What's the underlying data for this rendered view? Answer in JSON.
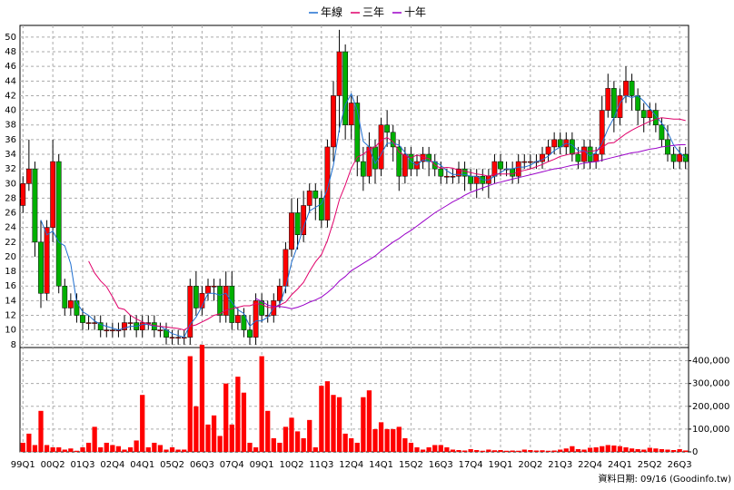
{
  "chart_data": [
    {
      "type": "candlestick",
      "source": "資料日期: 09/16 (Goodinfo.tw)",
      "categories": [
        "99Q1",
        null,
        null,
        null,
        null,
        "00Q2",
        null,
        null,
        null,
        null,
        "01Q3",
        null,
        null,
        null,
        null,
        "02Q4",
        null,
        null,
        null,
        null,
        "04Q1",
        null,
        null,
        null,
        null,
        "05Q2",
        null,
        null,
        null,
        null,
        "06Q3",
        null,
        null,
        null,
        null,
        "07Q4",
        null,
        null,
        null,
        null,
        "09Q1",
        null,
        null,
        null,
        null,
        "10Q2",
        null,
        null,
        null,
        null,
        "11Q3",
        null,
        null,
        null,
        null,
        "12Q4",
        null,
        null,
        null,
        null,
        "14Q1",
        null,
        null,
        null,
        null,
        "15Q2",
        null,
        null,
        null,
        null,
        "16Q3",
        null,
        null,
        null,
        null,
        "17Q4",
        null,
        null,
        null,
        null,
        "19Q1",
        null,
        null,
        null,
        null,
        "20Q2",
        null,
        null,
        null,
        null,
        "21Q3",
        null,
        null,
        null,
        null,
        "22Q4",
        null,
        null,
        null,
        null,
        "24Q1",
        null,
        null,
        null,
        null,
        "25Q2",
        null,
        null,
        null,
        null,
        "26Q3",
        null
      ],
      "open": [
        27,
        30,
        32,
        22,
        15,
        24,
        33,
        16,
        13,
        14,
        12,
        11,
        11,
        11,
        10,
        10,
        10,
        10,
        11,
        11,
        10,
        11,
        11,
        10,
        10,
        9,
        9,
        9,
        9,
        16,
        13,
        15,
        16,
        16,
        12,
        16,
        11,
        12,
        10,
        9,
        14,
        12,
        12,
        14,
        16,
        21,
        26,
        23,
        27,
        29,
        28,
        25,
        35,
        42,
        48,
        38,
        41,
        33,
        31,
        35,
        32,
        38,
        37,
        35,
        31,
        34,
        32,
        33,
        34,
        33,
        32,
        31,
        31,
        31,
        32,
        31,
        30,
        31,
        30,
        31,
        33,
        32,
        32,
        31,
        33,
        33,
        33,
        33,
        34,
        35,
        36,
        35,
        36,
        34,
        33,
        35,
        33,
        34,
        40,
        43,
        39,
        42,
        44,
        42,
        40,
        39,
        40,
        38,
        36,
        34,
        33,
        34
      ],
      "high": [
        31,
        36,
        33,
        25,
        25,
        36,
        34,
        17,
        15,
        15,
        13,
        12,
        12,
        12,
        11,
        11,
        11,
        12,
        12,
        12,
        12,
        12,
        12,
        11,
        11,
        10,
        10,
        10,
        17,
        18,
        16,
        17,
        17,
        17,
        18,
        18,
        13,
        13,
        12,
        15,
        15,
        14,
        15,
        17,
        22,
        28,
        28,
        29,
        30,
        30,
        29,
        36,
        44,
        51,
        49,
        42,
        42,
        35,
        37,
        36,
        39,
        40,
        38,
        36,
        35,
        35,
        34,
        35,
        35,
        34,
        33,
        32,
        32,
        33,
        33,
        32,
        32,
        32,
        32,
        34,
        34,
        33,
        33,
        34,
        34,
        34,
        34,
        35,
        36,
        37,
        37,
        37,
        37,
        35,
        36,
        36,
        35,
        42,
        45,
        44,
        43,
        46,
        45,
        43,
        41,
        41,
        41,
        39,
        38,
        35,
        35,
        35
      ],
      "low": [
        26,
        29,
        20,
        13,
        14,
        22,
        15,
        12,
        12,
        11,
        10,
        10,
        10,
        9,
        9,
        9,
        9,
        9,
        10,
        9,
        9,
        10,
        9,
        9,
        8,
        8,
        8,
        8,
        8,
        12,
        12,
        14,
        14,
        11,
        11,
        10,
        10,
        9,
        8,
        8,
        11,
        11,
        11,
        13,
        15,
        20,
        21,
        22,
        26,
        25,
        24,
        24,
        33,
        37,
        36,
        36,
        31,
        29,
        30,
        30,
        31,
        35,
        33,
        29,
        30,
        31,
        31,
        32,
        31,
        31,
        30,
        30,
        30,
        30,
        29,
        29,
        28,
        29,
        28,
        30,
        31,
        31,
        30,
        30,
        32,
        32,
        32,
        32,
        33,
        34,
        34,
        34,
        33,
        32,
        32,
        32,
        32,
        33,
        39,
        37,
        38,
        41,
        40,
        38,
        37,
        38,
        37,
        35,
        33,
        32,
        32,
        32
      ],
      "close": [
        30,
        32,
        22,
        15,
        24,
        33,
        16,
        13,
        14,
        12,
        11,
        11,
        11,
        10,
        10,
        10,
        10,
        11,
        11,
        10,
        11,
        11,
        10,
        10,
        9,
        9,
        9,
        9,
        16,
        13,
        15,
        16,
        16,
        12,
        16,
        11,
        12,
        10,
        9,
        14,
        12,
        12,
        14,
        16,
        21,
        26,
        23,
        27,
        29,
        28,
        25,
        35,
        42,
        48,
        38,
        41,
        33,
        31,
        35,
        32,
        38,
        37,
        35,
        31,
        34,
        32,
        33,
        34,
        33,
        32,
        31,
        31,
        31,
        32,
        31,
        30,
        31,
        30,
        31,
        33,
        32,
        32,
        31,
        33,
        33,
        33,
        33,
        34,
        35,
        36,
        35,
        36,
        34,
        33,
        35,
        33,
        34,
        40,
        43,
        39,
        42,
        44,
        42,
        40,
        39,
        40,
        38,
        36,
        34,
        33,
        34,
        33
      ],
      "up_color": "#ff0000",
      "down_color": "#00b000",
      "series": [
        {
          "name": "年線",
          "color": "#1f6fd0",
          "values": [
            null,
            null,
            null,
            25,
            23,
            23.5,
            22,
            21.5,
            19,
            13.8,
            12.5,
            12,
            11.25,
            10.75,
            10.5,
            10.25,
            10,
            10.25,
            10.5,
            10.5,
            10.75,
            10.75,
            10.5,
            10.5,
            10,
            9.5,
            9.25,
            9,
            10.75,
            11.75,
            13.25,
            15,
            15,
            14.75,
            15,
            13.75,
            12.75,
            12.25,
            10.5,
            11.25,
            11.25,
            11.75,
            13,
            13.5,
            15.75,
            19.25,
            21.5,
            24,
            26.25,
            26.75,
            27.25,
            29.25,
            32.5,
            37.5,
            40.75,
            42.25,
            40,
            35.75,
            35,
            32.75,
            34,
            35.5,
            35.5,
            35.25,
            34.25,
            33,
            32.5,
            33.25,
            33,
            33,
            32.5,
            31.75,
            31.25,
            31.25,
            31.25,
            31,
            31,
            30.5,
            30.5,
            31,
            31.5,
            32,
            32,
            32.25,
            32.25,
            32.5,
            33,
            33.25,
            33.75,
            34.5,
            35,
            35.5,
            35.25,
            34.5,
            34.5,
            33.75,
            34.25,
            35.5,
            37.5,
            39,
            41,
            42,
            41.75,
            42,
            41.25,
            40.25,
            39.25,
            38.25,
            37,
            35.25,
            34.25,
            33.5
          ]
        },
        {
          "name": "三年",
          "color": "#e0006a",
          "values": [
            null,
            null,
            null,
            null,
            null,
            null,
            null,
            null,
            null,
            null,
            null,
            19.4,
            17.8,
            16.7,
            15.9,
            14.5,
            13,
            12.8,
            12,
            11.5,
            11.1,
            10.8,
            10.6,
            10.5,
            10.4,
            10.3,
            10.2,
            10,
            10.5,
            10.7,
            11.1,
            11.5,
            12,
            12.2,
            12.7,
            12.9,
            13.1,
            13.3,
            13.3,
            13.6,
            13.5,
            13.1,
            13,
            13.4,
            13.8,
            14.8,
            15.6,
            16.5,
            18,
            19.3,
            20.3,
            22.2,
            24.8,
            27.8,
            29.8,
            32.1,
            33.6,
            34,
            34.7,
            35,
            35.9,
            36.3,
            35.7,
            34.3,
            33.8,
            33.5,
            33.9,
            33.6,
            33.4,
            32.5,
            32.1,
            32.2,
            32.1,
            31.8,
            31.7,
            31.5,
            31.3,
            31.2,
            31,
            31.3,
            31.3,
            31.3,
            31.3,
            31.6,
            31.8,
            32,
            32.3,
            32.6,
            33,
            33.3,
            33.7,
            33.9,
            34.1,
            34.2,
            34.4,
            34.4,
            34.5,
            34.9,
            35.5,
            35.6,
            36.2,
            36.8,
            37.3,
            37.7,
            38.1,
            38.5,
            38.8,
            39,
            38.9,
            38.8,
            38.8,
            38.6
          ]
        },
        {
          "name": "十年",
          "color": "#9a00c8",
          "values": [
            null,
            null,
            null,
            null,
            null,
            null,
            null,
            null,
            null,
            null,
            null,
            null,
            null,
            null,
            null,
            null,
            null,
            null,
            null,
            null,
            null,
            null,
            null,
            null,
            null,
            null,
            null,
            null,
            null,
            null,
            null,
            null,
            null,
            null,
            null,
            null,
            null,
            null,
            null,
            14.3,
            13.9,
            13.4,
            13.2,
            13.2,
            13.1,
            12.9,
            13.1,
            13.4,
            13.8,
            14.1,
            14.5,
            15.1,
            15.8,
            16.7,
            17.3,
            18.1,
            18.6,
            19.1,
            19.6,
            20.1,
            20.8,
            21.4,
            22,
            22.5,
            23.1,
            23.6,
            24.2,
            24.8,
            25.4,
            26,
            26.5,
            27,
            27.5,
            27.9,
            28.4,
            28.8,
            29.1,
            29.4,
            29.7,
            30,
            30.2,
            30.4,
            30.6,
            30.8,
            31,
            31.2,
            31.4,
            31.6,
            31.8,
            32,
            32.1,
            32.3,
            32.5,
            32.6,
            32.8,
            32.9,
            33,
            33.2,
            33.4,
            33.6,
            33.8,
            34,
            34.2,
            34.3,
            34.5,
            34.7,
            34.8,
            35,
            35.1,
            35.2,
            35.3,
            35.3
          ]
        }
      ],
      "ylim": [
        7.6,
        51.6
      ],
      "yticks": [
        8,
        10,
        12,
        14,
        16,
        18,
        20,
        22,
        24,
        26,
        28,
        30,
        32,
        34,
        36,
        38,
        40,
        42,
        44,
        46,
        48,
        50
      ],
      "grid": true
    },
    {
      "type": "bar",
      "color": "#ff0000",
      "values": [
        40000,
        80000,
        30000,
        180000,
        30000,
        20000,
        20000,
        10000,
        15000,
        5000,
        20000,
        40000,
        110000,
        20000,
        40000,
        30000,
        25000,
        10000,
        20000,
        50000,
        250000,
        20000,
        40000,
        30000,
        10000,
        20000,
        10000,
        10000,
        420000,
        200000,
        470000,
        120000,
        160000,
        70000,
        300000,
        120000,
        330000,
        260000,
        40000,
        20000,
        420000,
        180000,
        60000,
        40000,
        110000,
        150000,
        90000,
        60000,
        140000,
        20000,
        290000,
        310000,
        250000,
        240000,
        80000,
        60000,
        40000,
        240000,
        270000,
        100000,
        130000,
        100000,
        100000,
        110000,
        60000,
        40000,
        20000,
        10000,
        20000,
        30000,
        30000,
        20000,
        10000,
        8000,
        6000,
        12000,
        8000,
        5000,
        10000,
        7000,
        8000,
        5000,
        6000,
        5000,
        10000,
        8000,
        6000,
        7000,
        5000,
        6000,
        10000,
        15000,
        25000,
        12000,
        10000,
        18000,
        20000,
        25000,
        30000,
        28000,
        25000,
        20000,
        15000,
        12000,
        10000,
        18000,
        15000,
        12000,
        10000,
        8000,
        12000,
        6000
      ],
      "ylim": [
        0,
        450000
      ],
      "yticks": [
        0,
        {
          "value": 100000,
          "label": "100,000"
        },
        {
          "value": 200000,
          "label": "200,000"
        },
        {
          "value": 300000,
          "label": "300,000"
        },
        {
          "value": 400000,
          "label": "400,000"
        }
      ],
      "grid": true
    }
  ]
}
